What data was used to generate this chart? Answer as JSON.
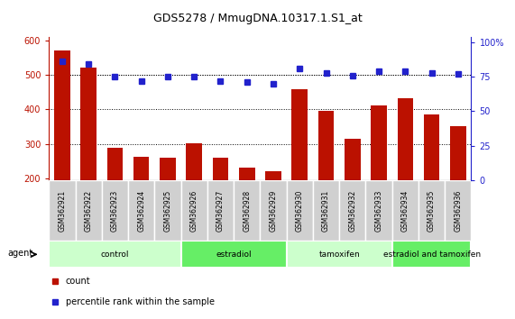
{
  "title": "GDS5278 / MmugDNA.10317.1.S1_at",
  "samples": [
    "GSM362921",
    "GSM362922",
    "GSM362923",
    "GSM362924",
    "GSM362925",
    "GSM362926",
    "GSM362927",
    "GSM362928",
    "GSM362929",
    "GSM362930",
    "GSM362931",
    "GSM362932",
    "GSM362933",
    "GSM362934",
    "GSM362935",
    "GSM362936"
  ],
  "counts": [
    570,
    520,
    290,
    262,
    260,
    302,
    260,
    232,
    220,
    458,
    395,
    315,
    410,
    432,
    385,
    352
  ],
  "percentiles": [
    86,
    84,
    75,
    72,
    75,
    75,
    72,
    71,
    70,
    81,
    78,
    76,
    79,
    79,
    78,
    77
  ],
  "groups": [
    {
      "label": "control",
      "start": 0,
      "end": 5,
      "color": "#ccffcc"
    },
    {
      "label": "estradiol",
      "start": 5,
      "end": 9,
      "color": "#66ee66"
    },
    {
      "label": "tamoxifen",
      "start": 9,
      "end": 13,
      "color": "#ccffcc"
    },
    {
      "label": "estradiol and tamoxifen",
      "start": 13,
      "end": 16,
      "color": "#66ee66"
    }
  ],
  "bar_color": "#bb1100",
  "dot_color": "#2222cc",
  "ylim_left": [
    195,
    610
  ],
  "ylim_right": [
    0,
    104
  ],
  "yticks_left": [
    200,
    300,
    400,
    500,
    600
  ],
  "yticks_right": [
    0,
    25,
    50,
    75,
    100
  ],
  "grid_values": [
    300,
    400,
    500
  ],
  "agent_label": "agent",
  "bar_bottom": 195
}
